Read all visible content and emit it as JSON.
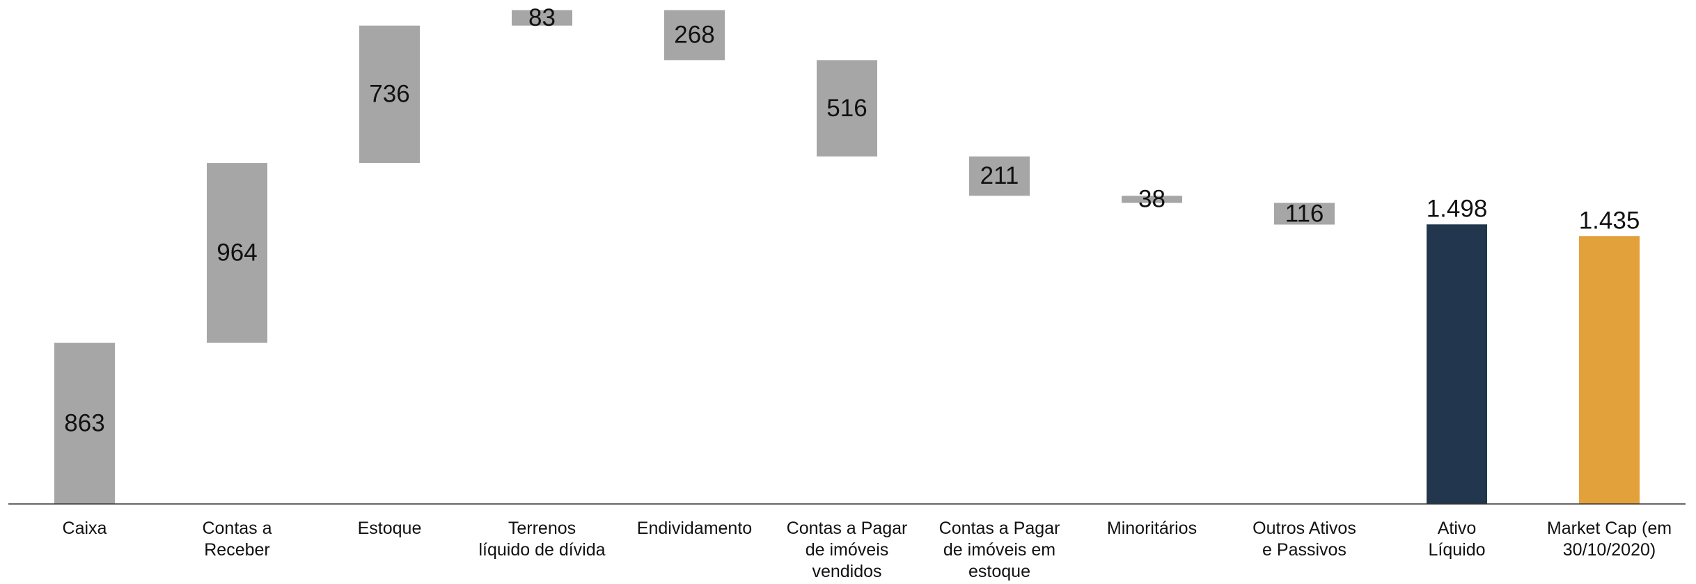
{
  "chart_data": {
    "type": "waterfall",
    "categories": [
      "Caixa",
      "Contas a\nReceber",
      "Estoque",
      "Terrenos\nlíquido de dívida",
      "Endividamento",
      "Contas a Pagar\nde imóveis\nvendidos",
      "Contas a Pagar\nde imóveis em\nestoque",
      "Minoritários",
      "Outros Ativos\ne Passivos",
      "Ativo\nLíquido",
      "Market Cap (em\n30/10/2020)"
    ],
    "values": [
      863,
      964,
      736,
      83,
      -268,
      -516,
      -211,
      -38,
      -116,
      1498,
      1435
    ],
    "value_labels": [
      "863",
      "964",
      "736",
      "83",
      "268",
      "516",
      "211",
      "38",
      "116",
      "1.498",
      "1.435"
    ],
    "colors": [
      "#a6a6a6",
      "#a6a6a6",
      "#a6a6a6",
      "#a6a6a6",
      "#a6a6a6",
      "#a6a6a6",
      "#a6a6a6",
      "#a6a6a6",
      "#a6a6a6",
      "#22364d",
      "#e3a13b"
    ],
    "totals": [
      9,
      10
    ],
    "ylim": [
      0,
      2700
    ]
  }
}
